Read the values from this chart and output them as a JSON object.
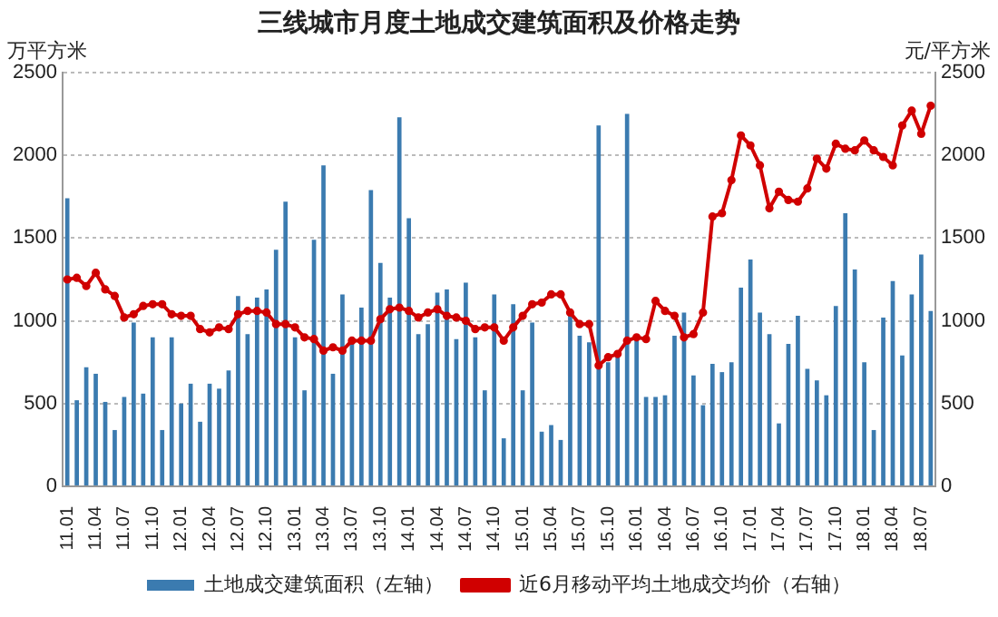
{
  "chart_data": {
    "type": "bar",
    "title": "三线城市月度土地成交建筑面积及价格走势",
    "ylabel": "万平方米",
    "y2label": "元/平方米",
    "categories": [
      "11.01",
      null,
      null,
      "11.04",
      null,
      null,
      "11.07",
      null,
      null,
      "11.10",
      null,
      null,
      "12.01",
      null,
      null,
      "12.04",
      null,
      null,
      "12.07",
      null,
      null,
      "12.10",
      null,
      null,
      "13.01",
      null,
      null,
      "13.04",
      null,
      null,
      "13.07",
      null,
      null,
      "13.10",
      null,
      null,
      "14.01",
      null,
      null,
      "14.04",
      null,
      null,
      "14.07",
      null,
      null,
      "14.10",
      null,
      null,
      "15.01",
      null,
      null,
      "15.04",
      null,
      null,
      "15.07",
      null,
      null,
      "15.10",
      null,
      null,
      "16.01",
      null,
      null,
      "16.04",
      null,
      null,
      "16.07",
      null,
      null,
      "16.10",
      null,
      null,
      "17.01",
      null,
      null,
      "17.04",
      null,
      null,
      "17.07",
      null,
      null,
      "17.10",
      null,
      null,
      "18.01",
      null,
      null,
      "18.04",
      null,
      null,
      "18.07",
      null
    ],
    "series": [
      {
        "name": "土地成交建筑面积（左轴）",
        "color": "#3b7bb0",
        "values": [
          1740,
          520,
          720,
          680,
          510,
          340,
          540,
          990,
          560,
          900,
          340,
          900,
          500,
          620,
          390,
          620,
          590,
          700,
          1150,
          920,
          1140,
          1190,
          1430,
          1720,
          900,
          580,
          1490,
          1940,
          680,
          1160,
          860,
          1080,
          1790,
          1350,
          1140,
          2230,
          1620,
          920,
          980,
          1170,
          1190,
          890,
          1230,
          900,
          580,
          1160,
          290,
          1100,
          580,
          990,
          330,
          370,
          280,
          1050,
          910,
          870,
          2180,
          750,
          800,
          2250,
          880,
          540,
          540,
          550,
          910,
          1050,
          670,
          490,
          740,
          690,
          750,
          1200,
          1370,
          1050,
          920,
          380,
          860,
          1030,
          710,
          640,
          550,
          1090,
          1650,
          1310,
          750,
          340,
          1020,
          1240,
          790,
          1160,
          1400,
          1060
        ]
      },
      {
        "name": "近6月移动平均土地成交均价（右轴）",
        "type": "line",
        "axis": "y2",
        "color": "#d00000",
        "marker": "circle",
        "values": [
          1250,
          1260,
          1210,
          1290,
          1190,
          1150,
          1020,
          1040,
          1090,
          1100,
          1100,
          1040,
          1030,
          1030,
          950,
          930,
          960,
          950,
          1040,
          1060,
          1060,
          1050,
          980,
          980,
          960,
          900,
          890,
          820,
          840,
          820,
          880,
          880,
          880,
          1010,
          1070,
          1080,
          1060,
          1020,
          1050,
          1070,
          1030,
          1020,
          1000,
          950,
          960,
          960,
          880,
          960,
          1030,
          1100,
          1110,
          1160,
          1160,
          1050,
          980,
          980,
          730,
          780,
          800,
          880,
          900,
          890,
          1120,
          1060,
          1030,
          900,
          920,
          1050,
          1630,
          1650,
          1850,
          2120,
          2060,
          1940,
          1680,
          1780,
          1730,
          1720,
          1800,
          1980,
          1920,
          2070,
          2040,
          2030,
          2090,
          2030,
          1990,
          1940,
          2180,
          2270,
          2130,
          2300
        ]
      }
    ],
    "ylim": [
      0,
      2500
    ],
    "yticks": [
      0,
      500,
      1000,
      1500,
      2000,
      2500
    ],
    "y2lim": [
      0,
      2500
    ],
    "y2ticks": [
      0,
      500,
      1000,
      1500,
      2000,
      2500
    ],
    "grid": "y",
    "legend": "bottom"
  }
}
